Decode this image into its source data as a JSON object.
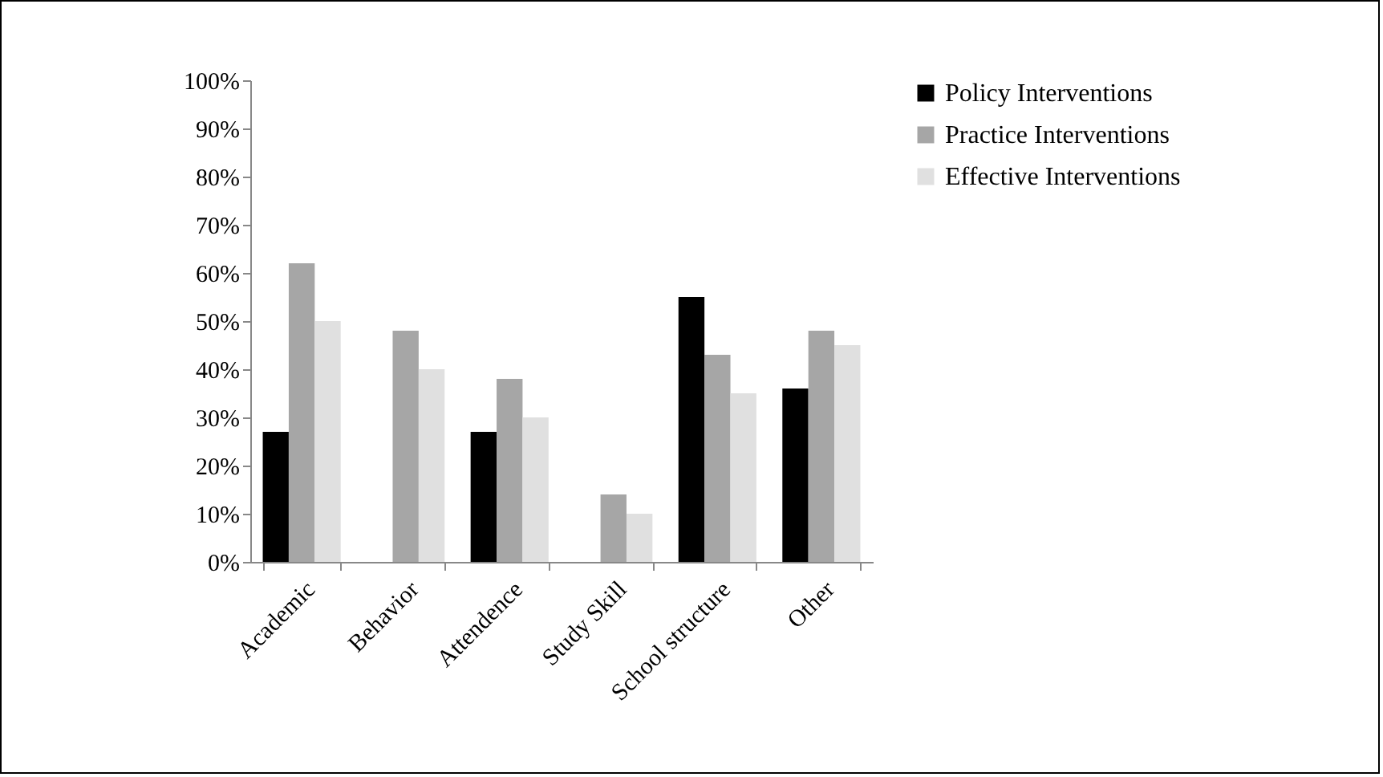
{
  "chart_data": {
    "type": "bar",
    "categories": [
      "Academic",
      "Behavior",
      "Attendence",
      "Study Skill",
      "School structure",
      "Other"
    ],
    "series": [
      {
        "name": "Policy Interventions",
        "color": "#000000",
        "values": [
          27,
          0,
          27,
          0,
          55,
          36
        ]
      },
      {
        "name": "Practice Interventions",
        "color": "#a6a6a6",
        "values": [
          62,
          48,
          38,
          14,
          43,
          48
        ]
      },
      {
        "name": "Effective Interventions",
        "color": "#e0e0e0",
        "values": [
          50,
          40,
          30,
          10,
          35,
          45
        ]
      }
    ],
    "ylim": [
      0,
      100
    ],
    "yticks": [
      {
        "value": 0,
        "label": "0%"
      },
      {
        "value": 10,
        "label": "10%"
      },
      {
        "value": 20,
        "label": "20%"
      },
      {
        "value": 30,
        "label": "30%"
      },
      {
        "value": 40,
        "label": "40%"
      },
      {
        "value": 50,
        "label": "50%"
      },
      {
        "value": 60,
        "label": "60%"
      },
      {
        "value": 70,
        "label": "70%"
      },
      {
        "value": 80,
        "label": "80%"
      },
      {
        "value": 90,
        "label": "90%"
      },
      {
        "value": 100,
        "label": "100%"
      }
    ],
    "grid": false,
    "legend": "right"
  }
}
